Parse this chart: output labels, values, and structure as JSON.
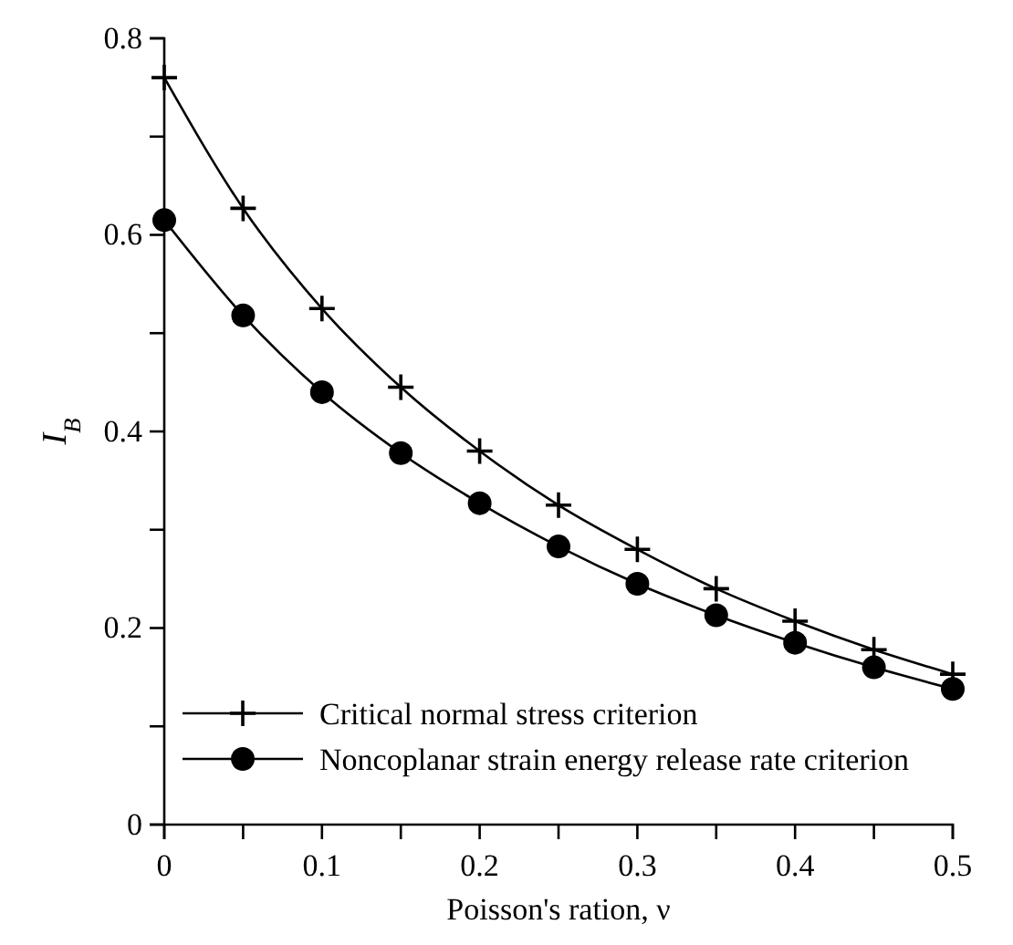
{
  "chart_data": {
    "type": "line",
    "xlabel": "Poisson's ration, ν",
    "ylabel": "I$_{B}$",
    "x": [
      0,
      0.05,
      0.1,
      0.15,
      0.2,
      0.25,
      0.3,
      0.35,
      0.4,
      0.45,
      0.5
    ],
    "series": [
      {
        "name": "Critical normal stress criterion",
        "color": "#000000",
        "marker": "cross",
        "values": [
          0.76,
          0.627,
          0.525,
          0.445,
          0.38,
          0.325,
          0.28,
          0.24,
          0.207,
          0.178,
          0.153
        ]
      },
      {
        "name": "Noncoplanar strain energy release rate criterion",
        "color": "#000000",
        "marker": "circle",
        "values": [
          0.615,
          0.518,
          0.44,
          0.378,
          0.327,
          0.283,
          0.245,
          0.213,
          0.185,
          0.16,
          0.138
        ]
      }
    ],
    "xlim": [
      0,
      0.5
    ],
    "ylim": [
      0,
      0.8
    ],
    "xticks": [
      0,
      {
        "value": 0.05,
        "label": null
      },
      0.1,
      {
        "value": 0.15,
        "label": null
      },
      0.2,
      {
        "value": 0.25,
        "label": null
      },
      0.3,
      {
        "value": 0.35,
        "label": null
      },
      0.4,
      {
        "value": 0.45,
        "label": null
      },
      0.5
    ],
    "yticks": [
      0,
      {
        "value": 0.1,
        "label": null
      },
      0.2,
      {
        "value": 0.3,
        "label": null
      },
      0.4,
      {
        "value": 0.5,
        "label": null
      },
      0.6,
      {
        "value": 0.7,
        "label": null
      },
      0.8
    ],
    "legend": "bottom left",
    "grid": false,
    "line_style": "solid"
  }
}
